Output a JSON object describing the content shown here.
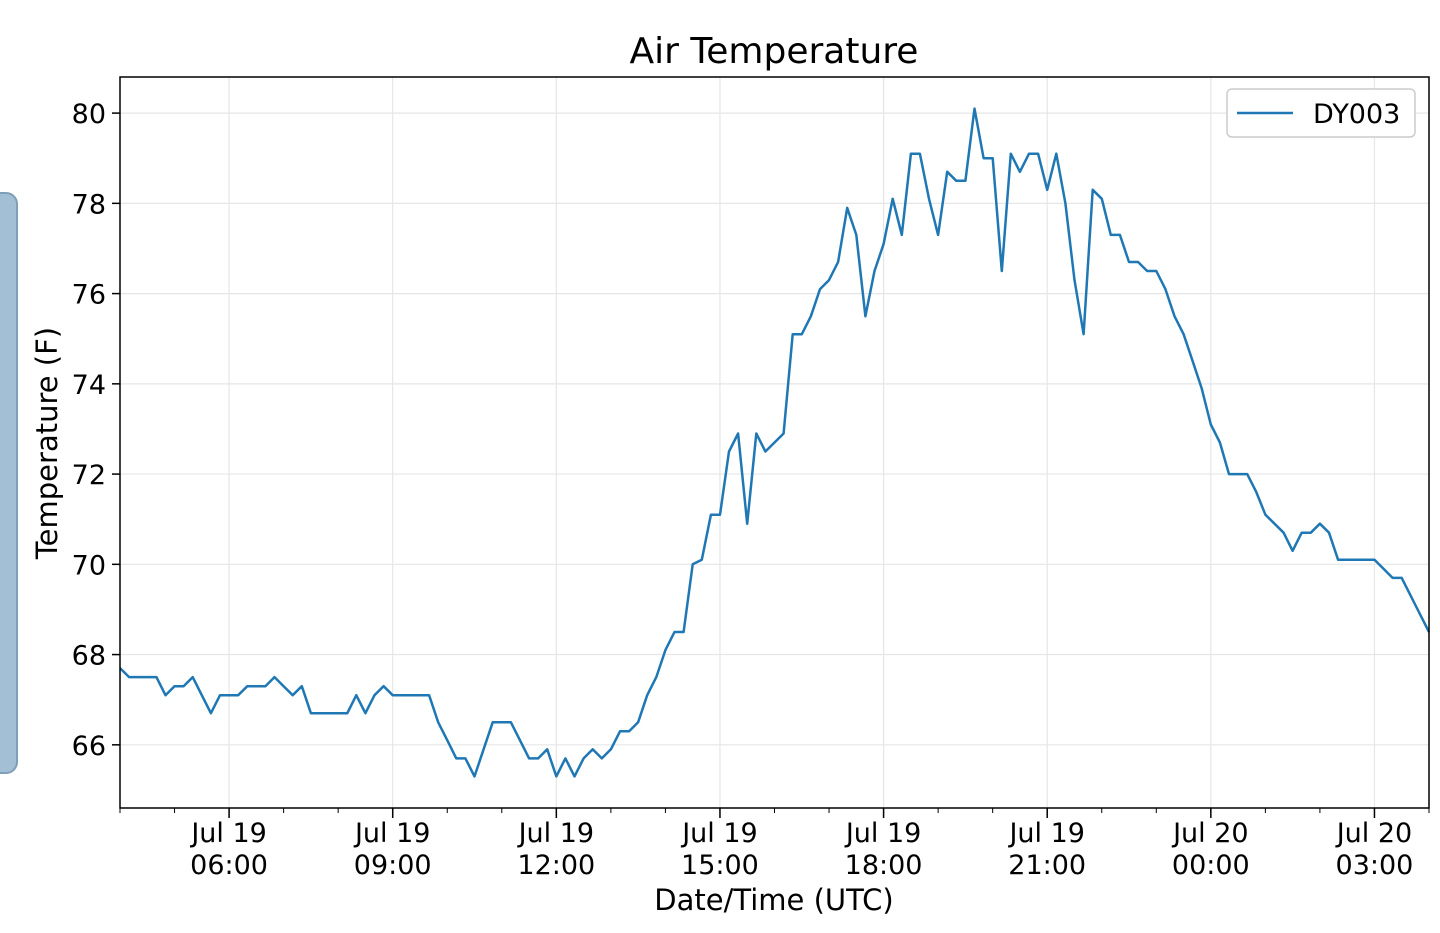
{
  "chart_data": {
    "type": "line",
    "title": "Air Temperature",
    "xlabel": "Date/Time (UTC)",
    "ylabel": "Temperature (F)",
    "x_range": [
      "2023-07-19T04:00",
      "2023-07-20T04:00"
    ],
    "ylim": [
      64.6,
      80.8
    ],
    "grid": true,
    "legend_position": "top-right",
    "x_ticks": [
      {
        "date": "Jul 19",
        "time": "06:00",
        "at": "2023-07-19T06:00"
      },
      {
        "date": "Jul 19",
        "time": "09:00",
        "at": "2023-07-19T09:00"
      },
      {
        "date": "Jul 19",
        "time": "12:00",
        "at": "2023-07-19T12:00"
      },
      {
        "date": "Jul 19",
        "time": "15:00",
        "at": "2023-07-19T15:00"
      },
      {
        "date": "Jul 19",
        "time": "18:00",
        "at": "2023-07-19T18:00"
      },
      {
        "date": "Jul 19",
        "time": "21:00",
        "at": "2023-07-19T21:00"
      },
      {
        "date": "Jul 20",
        "time": "00:00",
        "at": "2023-07-20T00:00"
      },
      {
        "date": "Jul 20",
        "time": "03:00",
        "at": "2023-07-20T03:00"
      }
    ],
    "y_ticks": [
      66,
      68,
      70,
      72,
      74,
      76,
      78,
      80
    ],
    "series": [
      {
        "name": "DY003",
        "color": "#1f77b4",
        "x": [
          "2023-07-19T04:00",
          "2023-07-19T04:10",
          "2023-07-19T04:20",
          "2023-07-19T04:30",
          "2023-07-19T04:40",
          "2023-07-19T04:50",
          "2023-07-19T05:00",
          "2023-07-19T05:10",
          "2023-07-19T05:20",
          "2023-07-19T05:30",
          "2023-07-19T05:40",
          "2023-07-19T05:50",
          "2023-07-19T06:00",
          "2023-07-19T06:10",
          "2023-07-19T06:20",
          "2023-07-19T06:30",
          "2023-07-19T06:40",
          "2023-07-19T06:50",
          "2023-07-19T07:00",
          "2023-07-19T07:10",
          "2023-07-19T07:20",
          "2023-07-19T07:30",
          "2023-07-19T07:40",
          "2023-07-19T07:50",
          "2023-07-19T08:00",
          "2023-07-19T08:10",
          "2023-07-19T08:20",
          "2023-07-19T08:30",
          "2023-07-19T08:40",
          "2023-07-19T08:50",
          "2023-07-19T09:00",
          "2023-07-19T09:10",
          "2023-07-19T09:20",
          "2023-07-19T09:30",
          "2023-07-19T09:40",
          "2023-07-19T09:50",
          "2023-07-19T10:00",
          "2023-07-19T10:10",
          "2023-07-19T10:20",
          "2023-07-19T10:30",
          "2023-07-19T10:40",
          "2023-07-19T10:50",
          "2023-07-19T11:00",
          "2023-07-19T11:10",
          "2023-07-19T11:20",
          "2023-07-19T11:30",
          "2023-07-19T11:40",
          "2023-07-19T11:50",
          "2023-07-19T12:00",
          "2023-07-19T12:10",
          "2023-07-19T12:20",
          "2023-07-19T12:30",
          "2023-07-19T12:40",
          "2023-07-19T12:50",
          "2023-07-19T13:00",
          "2023-07-19T13:10",
          "2023-07-19T13:20",
          "2023-07-19T13:30",
          "2023-07-19T13:40",
          "2023-07-19T13:50",
          "2023-07-19T14:00",
          "2023-07-19T14:10",
          "2023-07-19T14:20",
          "2023-07-19T14:30",
          "2023-07-19T14:40",
          "2023-07-19T14:50",
          "2023-07-19T15:00",
          "2023-07-19T15:10",
          "2023-07-19T15:20",
          "2023-07-19T15:30",
          "2023-07-19T15:40",
          "2023-07-19T15:50",
          "2023-07-19T16:00",
          "2023-07-19T16:10",
          "2023-07-19T16:20",
          "2023-07-19T16:30",
          "2023-07-19T16:40",
          "2023-07-19T16:50",
          "2023-07-19T17:00",
          "2023-07-19T17:10",
          "2023-07-19T17:20",
          "2023-07-19T17:30",
          "2023-07-19T17:40",
          "2023-07-19T17:50",
          "2023-07-19T18:00",
          "2023-07-19T18:10",
          "2023-07-19T18:20",
          "2023-07-19T18:30",
          "2023-07-19T18:40",
          "2023-07-19T18:50",
          "2023-07-19T19:00",
          "2023-07-19T19:10",
          "2023-07-19T19:20",
          "2023-07-19T19:30",
          "2023-07-19T19:40",
          "2023-07-19T19:50",
          "2023-07-19T20:00",
          "2023-07-19T20:10",
          "2023-07-19T20:20",
          "2023-07-19T20:30",
          "2023-07-19T20:40",
          "2023-07-19T20:50",
          "2023-07-19T21:00",
          "2023-07-19T21:10",
          "2023-07-19T21:20",
          "2023-07-19T21:30",
          "2023-07-19T21:40",
          "2023-07-19T21:50",
          "2023-07-19T22:00",
          "2023-07-19T22:10",
          "2023-07-19T22:20",
          "2023-07-19T22:30",
          "2023-07-19T22:40",
          "2023-07-19T22:50",
          "2023-07-19T23:00",
          "2023-07-19T23:10",
          "2023-07-19T23:20",
          "2023-07-19T23:30",
          "2023-07-19T23:40",
          "2023-07-19T23:50",
          "2023-07-20T00:00",
          "2023-07-20T00:10",
          "2023-07-20T00:20",
          "2023-07-20T00:30",
          "2023-07-20T00:40",
          "2023-07-20T00:50",
          "2023-07-20T01:00",
          "2023-07-20T01:10",
          "2023-07-20T01:20",
          "2023-07-20T01:30",
          "2023-07-20T01:40",
          "2023-07-20T01:50",
          "2023-07-20T02:00",
          "2023-07-20T02:10",
          "2023-07-20T02:20",
          "2023-07-20T02:30",
          "2023-07-20T02:40",
          "2023-07-20T02:50",
          "2023-07-20T03:00",
          "2023-07-20T03:10",
          "2023-07-20T03:20",
          "2023-07-20T03:30",
          "2023-07-20T03:40",
          "2023-07-20T03:50",
          "2023-07-20T04:00"
        ],
        "y": [
          67.7,
          67.5,
          67.5,
          67.5,
          67.5,
          67.1,
          67.3,
          67.3,
          67.5,
          67.1,
          66.7,
          67.1,
          67.1,
          67.1,
          67.3,
          67.3,
          67.3,
          67.5,
          67.3,
          67.1,
          67.3,
          66.7,
          66.7,
          66.7,
          66.7,
          66.7,
          67.1,
          66.7,
          67.1,
          67.3,
          67.1,
          67.1,
          67.1,
          67.1,
          67.1,
          66.5,
          66.1,
          65.7,
          65.7,
          65.3,
          65.9,
          66.5,
          66.5,
          66.5,
          66.1,
          65.7,
          65.7,
          65.9,
          65.3,
          65.7,
          65.3,
          65.7,
          65.9,
          65.7,
          65.9,
          66.3,
          66.3,
          66.5,
          67.1,
          67.5,
          68.1,
          68.5,
          68.5,
          70.0,
          70.1,
          71.1,
          71.1,
          72.5,
          72.9,
          70.9,
          72.9,
          72.5,
          72.7,
          72.9,
          75.1,
          75.1,
          75.5,
          76.1,
          76.3,
          76.7,
          77.9,
          77.3,
          75.5,
          76.5,
          77.1,
          78.1,
          77.3,
          79.1,
          79.1,
          78.1,
          77.3,
          78.7,
          78.5,
          78.5,
          80.1,
          79.0,
          79.0,
          76.5,
          79.1,
          78.7,
          79.1,
          79.1,
          78.3,
          79.1,
          78.0,
          76.3,
          75.1,
          78.3,
          78.1,
          77.3,
          77.3,
          76.7,
          76.7,
          76.5,
          76.5,
          76.1,
          75.5,
          75.1,
          74.5,
          73.9,
          73.1,
          72.7,
          72.0,
          72.0,
          72.0,
          71.6,
          71.1,
          70.9,
          70.7,
          70.3,
          70.7,
          70.7,
          70.9,
          70.7,
          70.1,
          70.1,
          70.1,
          70.1,
          70.1,
          69.9,
          69.7,
          69.7,
          69.3,
          68.9,
          68.5
        ]
      }
    ]
  }
}
